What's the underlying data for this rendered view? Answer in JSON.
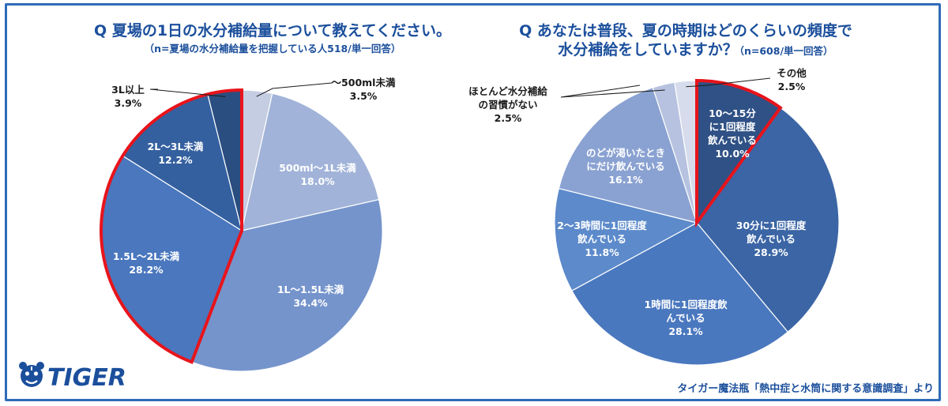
{
  "chart_data": [
    {
      "type": "pie",
      "title": "Q 夏場の1日の水分補給量について教えてください。",
      "subtitle": "（n=夏場の水分補給量を把握している人518/単一回答）",
      "slices": [
        {
          "label": "〜500ml未満",
          "value": 3.5,
          "value_label": "3.5%",
          "color": "#c5cde2"
        },
        {
          "label": "500ml〜1L未満",
          "value": 18.0,
          "value_label": "18.0%",
          "color": "#a1b3d8"
        },
        {
          "label": "1L〜1.5L未満",
          "value": 34.4,
          "value_label": "34.4%",
          "color": "#7594cc"
        },
        {
          "label": "1.5L〜2L未満",
          "value": 28.2,
          "value_label": "28.2%",
          "color": "#4a77be"
        },
        {
          "label": "2L〜3L未満",
          "value": 12.2,
          "value_label": "12.2%",
          "color": "#34609f"
        },
        {
          "label": "3L以上",
          "value": 3.9,
          "value_label": "3.9%",
          "color": "#2b4e80"
        }
      ],
      "highlight_range": [
        3,
        5
      ]
    },
    {
      "type": "pie",
      "title": "Q あなたは普段、夏の時期はどのくらいの頻度で",
      "title_line2": "水分補給をしていますか？",
      "subtitle": "（n=608/単一回答）",
      "slices": [
        {
          "label": "10〜15分に1回程度飲んでいる",
          "label_lines": [
            "10〜15分",
            "に1回程度",
            "飲んでいる"
          ],
          "value": 10.0,
          "value_label": "10.0%",
          "color": "#2f5185"
        },
        {
          "label": "30分に1回程度飲んでいる",
          "label_lines": [
            "30分に1回程度",
            "飲んでいる"
          ],
          "value": 28.9,
          "value_label": "28.9%",
          "color": "#3b65a5"
        },
        {
          "label": "1時間に1回程度飲んでいる",
          "label_lines": [
            "1時間に1回程度飲",
            "んでいる"
          ],
          "value": 28.1,
          "value_label": "28.1%",
          "color": "#4a78bf"
        },
        {
          "label": "2〜3時間に1回程度飲んでいる",
          "label_lines": [
            "2〜3時間に1回程度",
            "飲んでいる"
          ],
          "value": 11.8,
          "value_label": "11.8%",
          "color": "#5c8acb"
        },
        {
          "label": "のどが渇いたときにだけ飲んでいる",
          "label_lines": [
            "のどが渇いたとき",
            "にだけ飲んでいる"
          ],
          "value": 16.1,
          "value_label": "16.1%",
          "color": "#8aa2d2"
        },
        {
          "label": "ほとんど水分補給の習慣がない",
          "label_lines": [
            "ほとんど水分補給",
            "の習慣がない"
          ],
          "value": 2.5,
          "value_label": "2.5%",
          "color": "#b6c2df"
        },
        {
          "label": "その他",
          "label_lines": [
            "その他"
          ],
          "value": 2.5,
          "value_label": "2.5%",
          "color": "#d6dcec"
        }
      ],
      "highlight_range": [
        0,
        0
      ]
    }
  ],
  "brand": {
    "name": "TIGER",
    "color": "#1b4f9c"
  },
  "source_note": "タイガー魔法瓶「熱中症と水筒に関する意識調査」より",
  "colors": {
    "title": "#1b4f9c",
    "highlight": "#e8141b",
    "border": "#2e6bb8"
  }
}
